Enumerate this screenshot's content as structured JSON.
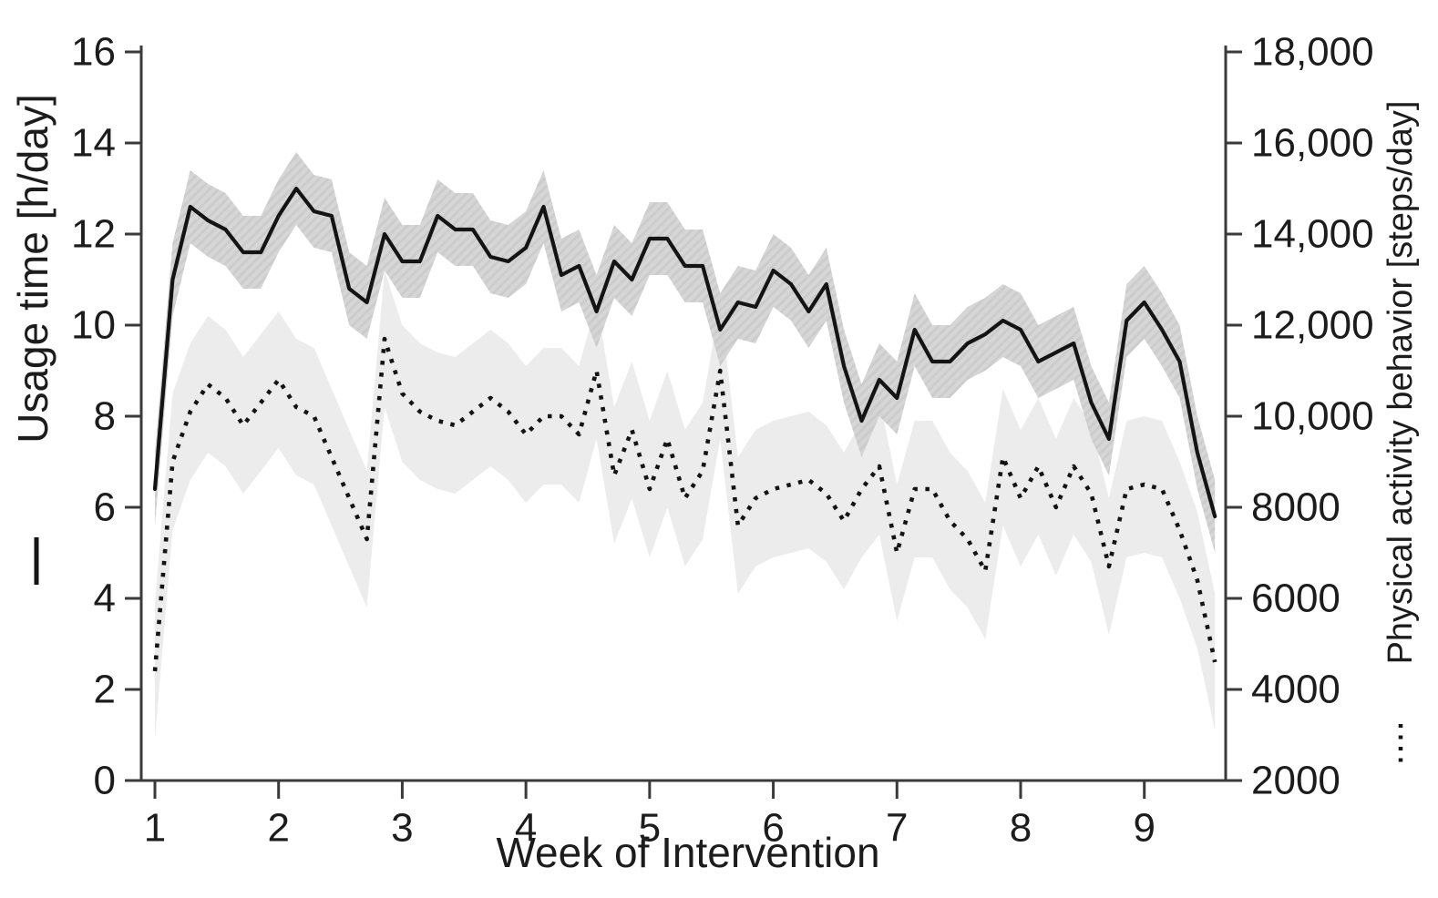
{
  "chart_data": {
    "type": "line",
    "title": "",
    "xlabel": "Week of Intervention",
    "ylabel_left": "Usage time [h/day]",
    "ylabel_right": "Physical activity behavior [steps/day]",
    "sampling_note": "daily measurements, 7 points per week",
    "grid": false,
    "legend_position": "axis-titles (line key drawn beside each rotated axis title)",
    "x_axis": {
      "range": [
        1,
        9.571
      ],
      "tick_values": [
        1,
        2,
        3,
        4,
        5,
        6,
        7,
        8,
        9
      ],
      "tick_labels": [
        "1",
        "2",
        "3",
        "4",
        "5",
        "6",
        "7",
        "8",
        "9"
      ]
    },
    "y_left_axis": {
      "range": [
        0,
        16
      ],
      "tick_values": [
        0,
        2,
        4,
        6,
        8,
        10,
        12,
        14,
        16
      ],
      "tick_labels": [
        "0",
        "2",
        "4",
        "6",
        "8",
        "10",
        "12",
        "14",
        "16"
      ]
    },
    "y_right_axis": {
      "range": [
        2000,
        18000
      ],
      "tick_values": [
        2000,
        4000,
        6000,
        8000,
        10000,
        12000,
        14000,
        16000,
        18000
      ],
      "tick_labels": [
        "2000",
        "4000",
        "6000",
        "8000",
        "10,000",
        "12,000",
        "14,000",
        "16,000",
        "18,000"
      ]
    },
    "x_weeks": [
      1,
      1.143,
      1.286,
      1.429,
      1.571,
      1.714,
      1.857,
      2,
      2.143,
      2.286,
      2.429,
      2.571,
      2.714,
      2.857,
      3,
      3.143,
      3.286,
      3.429,
      3.571,
      3.714,
      3.857,
      4,
      4.143,
      4.286,
      4.429,
      4.571,
      4.714,
      4.857,
      5,
      5.143,
      5.286,
      5.429,
      5.571,
      5.714,
      5.857,
      6,
      6.143,
      6.286,
      6.429,
      6.571,
      6.714,
      6.857,
      7,
      7.143,
      7.286,
      7.429,
      7.571,
      7.714,
      7.857,
      8,
      8.143,
      8.286,
      8.429,
      8.571,
      8.714,
      8.857,
      9,
      9.143,
      9.286,
      9.429,
      9.571
    ],
    "series": [
      {
        "name": "Usage time",
        "unit": "h/day",
        "axis": "left",
        "line_style": "solid",
        "ci_halfwidth": 0.8,
        "values": [
          6.4,
          11.0,
          12.6,
          12.3,
          12.1,
          11.6,
          11.6,
          12.4,
          13.0,
          12.5,
          12.4,
          10.8,
          10.5,
          12.0,
          11.4,
          11.4,
          12.4,
          12.1,
          12.1,
          11.5,
          11.4,
          11.7,
          12.6,
          11.1,
          11.3,
          10.3,
          11.4,
          11.0,
          11.9,
          11.9,
          11.3,
          11.3,
          9.9,
          10.5,
          10.4,
          11.2,
          10.9,
          10.3,
          10.9,
          9.1,
          7.9,
          8.8,
          8.4,
          9.9,
          9.2,
          9.2,
          9.6,
          9.8,
          10.1,
          9.9,
          9.2,
          9.4,
          9.6,
          8.3,
          7.5,
          10.1,
          10.5,
          9.9,
          9.2,
          7.2,
          5.8
        ]
      },
      {
        "name": "Physical activity behavior",
        "unit": "steps/day",
        "axis": "right",
        "line_style": "dashed",
        "ci_halfwidth": 1500,
        "values": [
          4400,
          9000,
          10100,
          10700,
          10400,
          9800,
          10300,
          10800,
          10200,
          10000,
          9100,
          8200,
          7300,
          11700,
          10500,
          10100,
          9900,
          9800,
          10100,
          10400,
          10100,
          9600,
          10000,
          10000,
          9600,
          11000,
          8700,
          9700,
          8400,
          9500,
          8200,
          8800,
          11000,
          7600,
          8200,
          8400,
          8500,
          8600,
          8300,
          7700,
          8400,
          8900,
          7000,
          8400,
          8400,
          7700,
          7300,
          6600,
          9100,
          8200,
          8900,
          8000,
          8900,
          8300,
          6700,
          8400,
          8500,
          8400,
          7500,
          6400,
          4600
        ]
      }
    ],
    "colors": {
      "line": "#141414",
      "ci_band_dark": "#d2d2d2",
      "ci_band_dark_stripe": "#c8c8c8",
      "ci_band_light": "#ececec",
      "axis": "#3a3a3a",
      "text": "#1c1c1c",
      "background": "#ffffff"
    }
  }
}
